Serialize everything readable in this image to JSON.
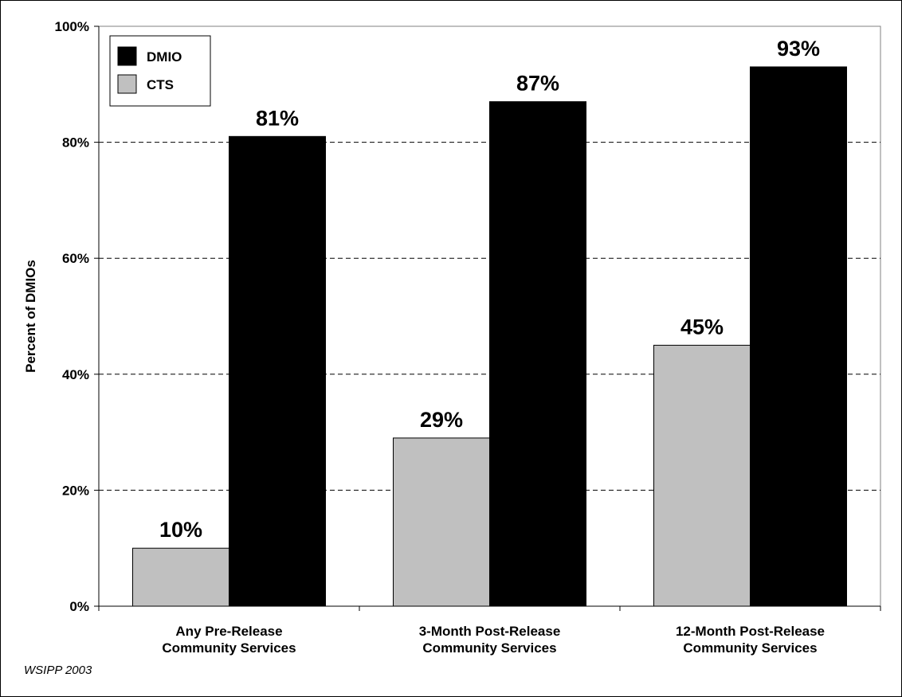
{
  "chart_data": {
    "type": "bar",
    "categories": [
      [
        "Any Pre-Release",
        "Community Services"
      ],
      [
        "3-Month Post-Release",
        "Community Services"
      ],
      [
        "12-Month Post-Release",
        "Community Services"
      ]
    ],
    "series": [
      {
        "name": "CTS",
        "values": [
          10,
          29,
          45
        ],
        "data_labels": [
          "10%",
          "29%",
          "45%"
        ],
        "color": "#c0c0c0"
      },
      {
        "name": "DMIO",
        "values": [
          81,
          87,
          93
        ],
        "data_labels": [
          "81%",
          "87%",
          "93%"
        ],
        "color": "#000000"
      }
    ],
    "legend": {
      "placement": "top-left",
      "order": [
        "DMIO",
        "CTS"
      ]
    },
    "ylabel": "Percent of DMIOs",
    "ylim": [
      0,
      100
    ],
    "yticks": [
      0,
      20,
      40,
      60,
      80,
      100
    ],
    "ytick_labels": [
      "0%",
      "20%",
      "40%",
      "60%",
      "80%",
      "100%"
    ],
    "grid": "horizontal dashed",
    "source_note": "WSIPP 2003"
  }
}
